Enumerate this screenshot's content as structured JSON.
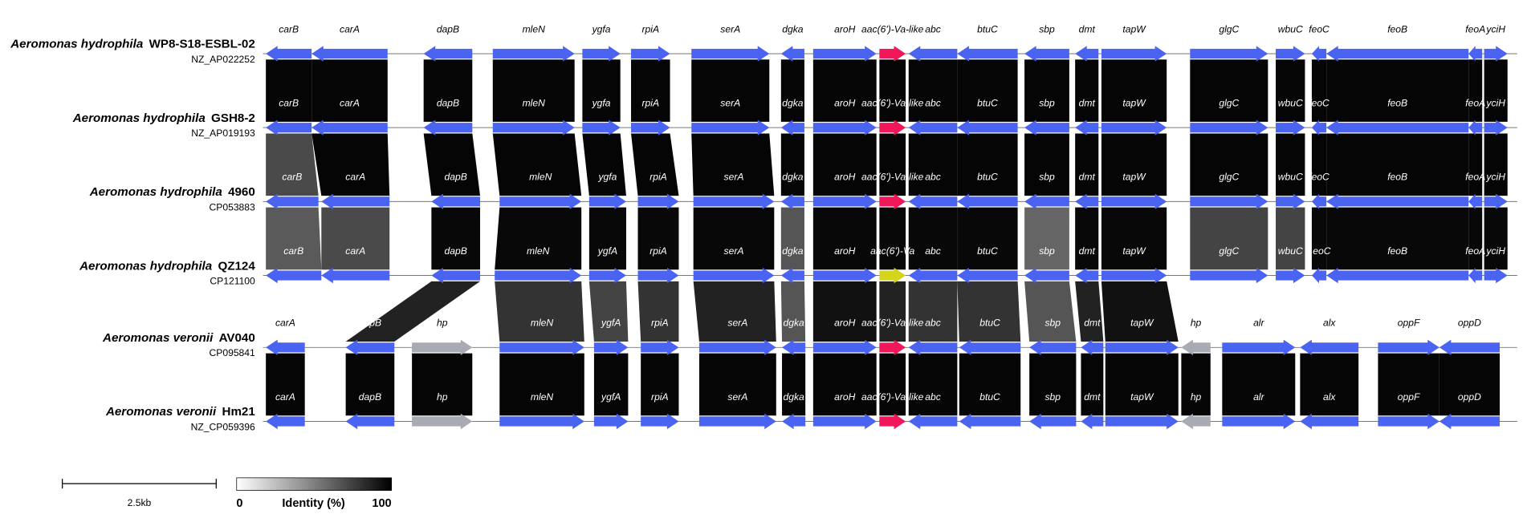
{
  "tracks": [
    {
      "species": "Aeromonas hydrophila",
      "strain": "WP8-S18-ESBL-02",
      "accession": "NZ_AP022252",
      "genes": [
        "carB",
        "carA",
        "dapB",
        "mleN",
        "ygfa",
        "rpiA",
        "serA",
        "dgka",
        "aroH",
        "aac(6')-Va-like",
        "abc",
        "btuC",
        "sbp",
        "dmt",
        "tapW",
        "glgC",
        "wbuC",
        "feoC",
        "feoB",
        "feoA",
        "yciH"
      ]
    },
    {
      "species": "Aeromonas hydrophila",
      "strain": "GSH8-2",
      "accession": "NZ_AP019193",
      "genes": [
        "carB",
        "carA",
        "dapB",
        "mleN",
        "ygfa",
        "rpiA",
        "serA",
        "dgka",
        "aroH",
        "aac(6')-Va-like",
        "abc",
        "btuC",
        "sbp",
        "dmt",
        "tapW",
        "glgC",
        "wbuC",
        "feoC",
        "feoB",
        "feoA",
        "yciH"
      ]
    },
    {
      "species": "Aeromonas hydrophila",
      "strain": "4960",
      "accession": "CP053883",
      "genes": [
        "carB",
        "carA",
        "dapB",
        "mleN",
        "ygfa",
        "rpiA",
        "serA",
        "dgka",
        "aroH",
        "aac(6')-Va-like",
        "abc",
        "btuC",
        "sbp",
        "dmt",
        "tapW",
        "glgC",
        "wbuC",
        "feoC",
        "feoB",
        "feoA",
        "yciH"
      ]
    },
    {
      "species": "Aeromonas hydrophila",
      "strain": "QZ124",
      "accession": "CP121100",
      "genes": [
        "carB",
        "carA",
        "dapB",
        "mleN",
        "ygfA",
        "rpiA",
        "serA",
        "dgka",
        "aroH",
        "aac(6')-Va",
        "abc",
        "btuC",
        "sbp",
        "dmt",
        "tapW",
        "glgC",
        "wbuC",
        "f eoC",
        "feoB",
        "feoA",
        "yciH"
      ]
    },
    {
      "species": "Aeromonas veronii",
      "strain": "AV040",
      "accession": "CP095841",
      "genes": [
        "carA",
        "dapB",
        "hp",
        "mleN",
        "ygfA",
        "rpiA",
        "serA",
        "dgka",
        "aroH",
        "aac(6')-Va-like",
        "abc",
        "btuC",
        "sbp",
        "dmt",
        "tapW",
        "hp",
        "alr",
        "alx",
        "oppF",
        "oppD"
      ]
    },
    {
      "species": "Aeromonas veronii",
      "strain": "Hm21",
      "accession": "NZ_CP059396",
      "genes": [
        "carA",
        "dapB",
        "hp",
        "mleN",
        "ygfA",
        "rpiA",
        "serA",
        "dgka",
        "aroH",
        "aac(6')-Va-like",
        "abc",
        "btuC",
        "sbp",
        "dmt",
        "tapW",
        "hp",
        "alr",
        "alx",
        "oppF",
        "oppD"
      ]
    }
  ],
  "scale_bar": {
    "label": "2.5kb"
  },
  "legend": {
    "title": "Identity (%)",
    "ticks": [
      0,
      100
    ]
  }
}
